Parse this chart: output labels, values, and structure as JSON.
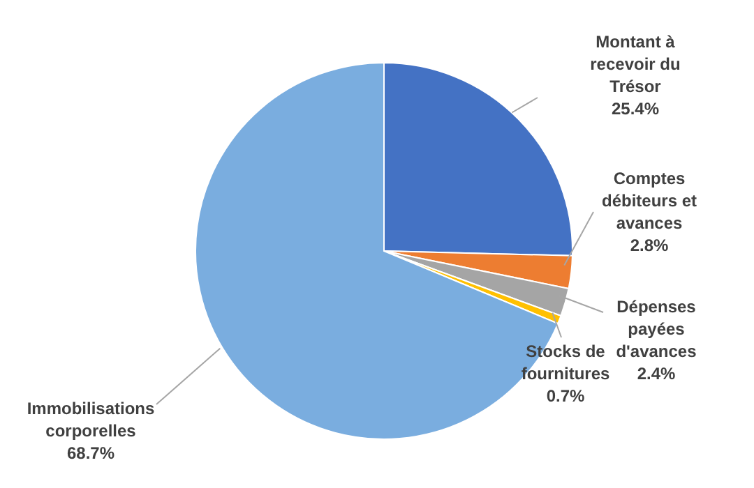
{
  "chart_data": {
    "type": "pie",
    "categories": [
      "Montant à recevoir du Trésor",
      "Comptes débiteurs et avances",
      "Dépenses payées d'avances",
      "Stocks de fournitures",
      "Immobilisations corporelles"
    ],
    "values": [
      25.4,
      2.8,
      2.4,
      0.7,
      68.7
    ],
    "value_labels": [
      "25.4%",
      "2.8%",
      "2.4%",
      "0.7%",
      "68.7%"
    ],
    "colors": [
      "#4472c4",
      "#ed7d31",
      "#a5a5a5",
      "#ffc000",
      "#7aaddf"
    ],
    "legend": false
  }
}
